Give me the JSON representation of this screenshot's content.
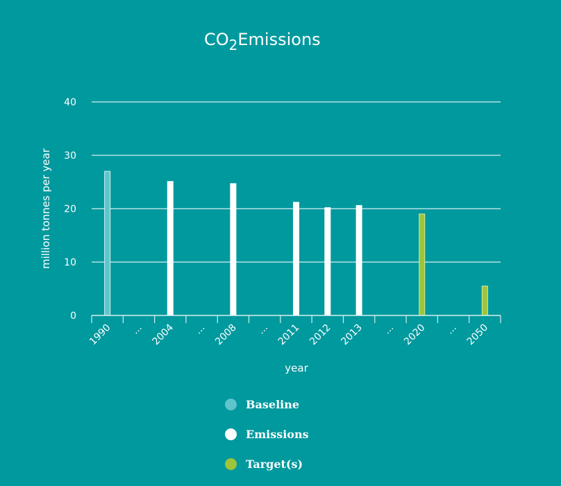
{
  "chart_data": {
    "type": "bar",
    "title": {
      "main": "CO",
      "sub": "2",
      "rest": "Emissions"
    },
    "xlabel": "year",
    "ylabel": "million tonnes per year",
    "ylim": [
      0,
      40
    ],
    "yticks": [
      0,
      10,
      20,
      30,
      40
    ],
    "grid": true,
    "categories": [
      "1990",
      "...",
      "2004",
      "...",
      "2008",
      "...",
      "2011",
      "2012",
      "2013",
      "...",
      "2020",
      "...",
      "2050"
    ],
    "values": [
      27.0,
      null,
      25.1,
      null,
      24.7,
      null,
      21.2,
      20.2,
      20.6,
      null,
      19.0,
      null,
      5.5
    ],
    "bar_types": [
      "Baseline",
      null,
      "Emissions",
      null,
      "Emissions",
      null,
      "Emissions",
      "Emissions",
      "Emissions",
      null,
      "Target(s)",
      null,
      "Target(s)"
    ],
    "legend": [
      {
        "name": "Baseline",
        "color": "#5fc4cb"
      },
      {
        "name": "Emissions",
        "color": "#ffffff"
      },
      {
        "name": "Target(s)",
        "color": "#9dc43a"
      }
    ],
    "legend_position": "bottom"
  },
  "colors": {
    "background": "#00999e",
    "gridline": "#d8f0f0",
    "baseline_fill": "#5fc4cb",
    "baseline_stroke": "#d6f1f2",
    "emissions_fill": "#ffffff",
    "target_fill": "#9dc43a",
    "target_stroke": "#d9eca6"
  }
}
